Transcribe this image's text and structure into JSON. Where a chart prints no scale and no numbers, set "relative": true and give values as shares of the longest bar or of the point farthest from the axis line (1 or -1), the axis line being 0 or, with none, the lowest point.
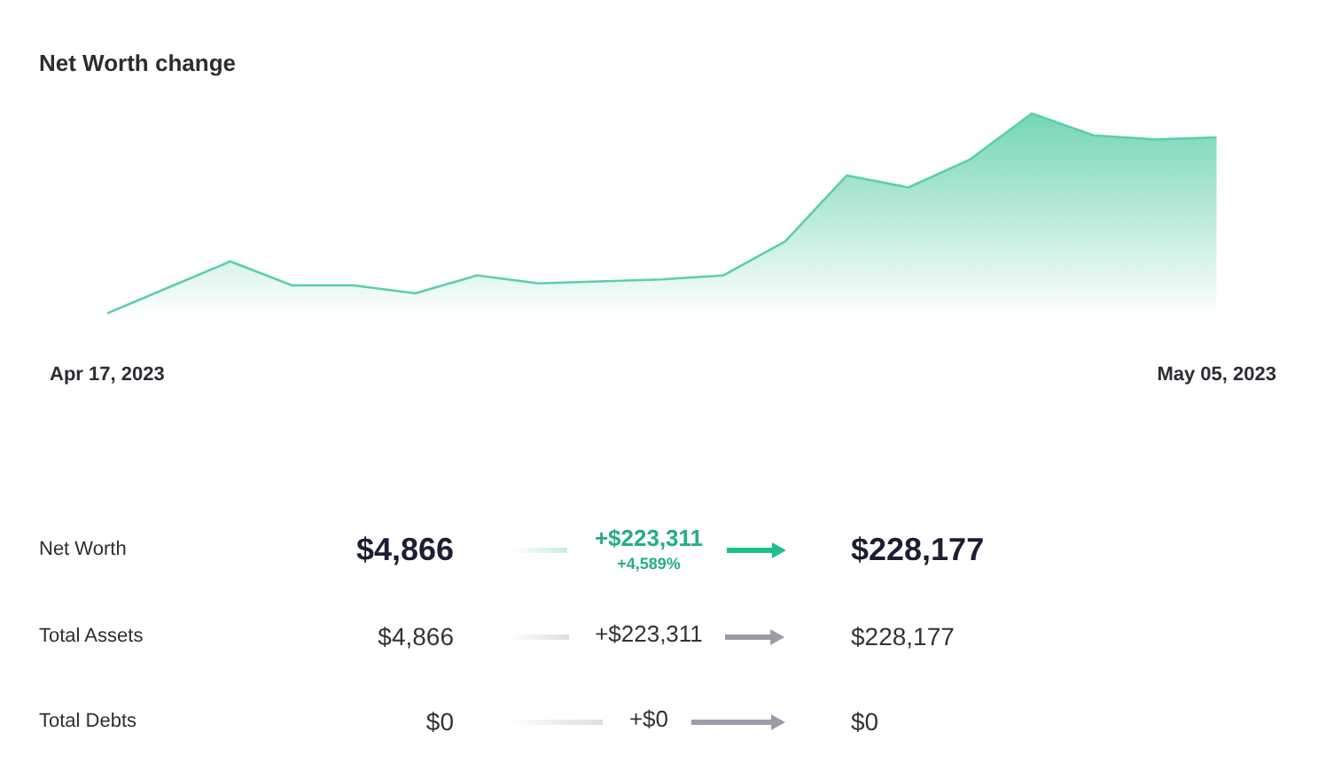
{
  "chart_data": [
    {
      "type": "area",
      "title": "Net Worth change",
      "x": [
        "2023-04-17",
        "2023-04-18",
        "2023-04-19",
        "2023-04-20",
        "2023-04-21",
        "2023-04-22",
        "2023-04-23",
        "2023-04-24",
        "2023-04-25",
        "2023-04-26",
        "2023-04-27",
        "2023-04-28",
        "2023-04-29",
        "2023-04-30",
        "2023-05-01",
        "2023-05-02",
        "2023-05-03",
        "2023-05-04",
        "2023-05-05"
      ],
      "values": [
        0,
        0.13,
        0.26,
        0.14,
        0.14,
        0.1,
        0.19,
        0.15,
        0.16,
        0.17,
        0.19,
        0.36,
        0.69,
        0.63,
        0.77,
        1,
        0.89,
        0.87,
        0.88
      ],
      "color": "#5ccfa8",
      "relative": true,
      "xlim": [
        "2023-04-17",
        "2023-05-05"
      ],
      "xticks": [
        {
          "value": "2023-04-17",
          "label": "Apr 17, 2023"
        },
        {
          "value": "2023-05-05",
          "label": "May 05, 2023"
        }
      ],
      "tick_labels": "x",
      "grid": false,
      "legend": false,
      "marker": "none"
    },
    {
      "type": "other",
      "annotations": [
        "Net Worth",
        "$4,866",
        "+$223,311",
        "+4,589%",
        "$228,177",
        "Total Assets",
        "$4,866",
        "+$223,311",
        "$228,177",
        "Total Debts",
        "$0",
        "+$0",
        "$0"
      ]
    }
  ]
}
